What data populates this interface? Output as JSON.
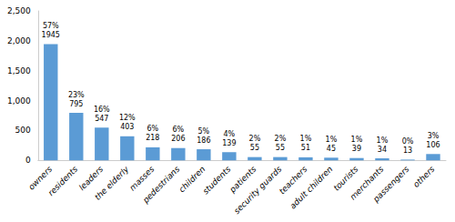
{
  "chart_data": {
    "type": "bar",
    "categories": [
      "owners",
      "residents",
      "leaders",
      "the elderly",
      "masses",
      "pedestrians",
      "children",
      "students",
      "patients",
      "security guards",
      "teachers",
      "adult children",
      "tourists",
      "merchants",
      "passengers",
      "others"
    ],
    "values": [
      1945,
      795,
      547,
      403,
      218,
      206,
      186,
      139,
      55,
      55,
      51,
      45,
      39,
      34,
      13,
      106
    ],
    "percentages": [
      "57%",
      "23%",
      "16%",
      "12%",
      "6%",
      "6%",
      "5%",
      "4%",
      "2%",
      "2%",
      "1%",
      "1%",
      "1%",
      "1%",
      "0%",
      "3%"
    ],
    "color": "#5B9BD5",
    "ylim": [
      0,
      2500
    ],
    "yticks": [
      0,
      500,
      1000,
      1500,
      2000,
      2500
    ],
    "grid": false,
    "data_labels": true
  }
}
